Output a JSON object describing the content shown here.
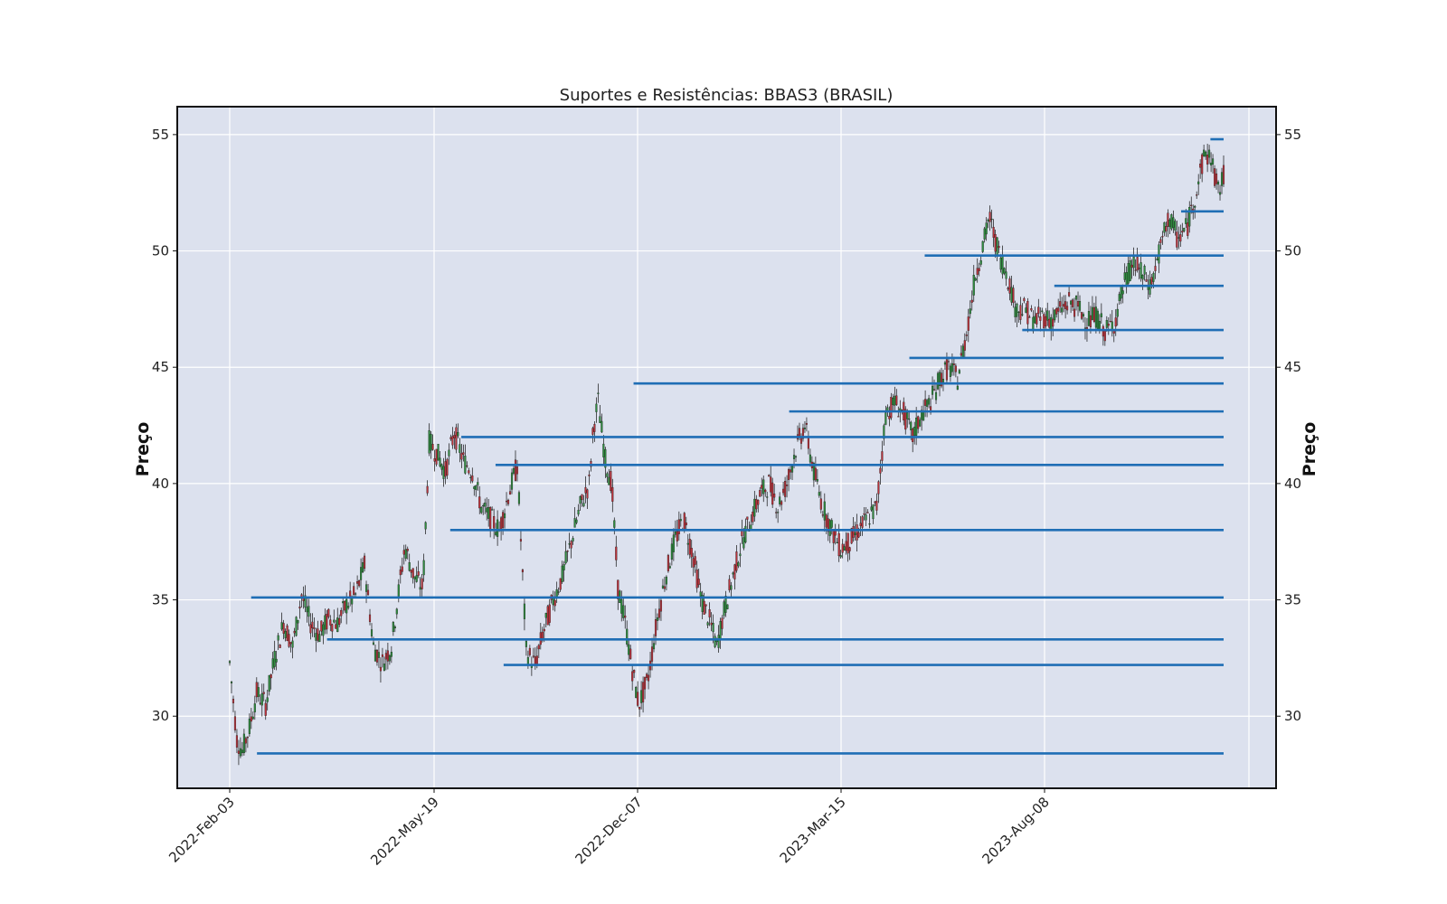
{
  "chart_data": {
    "type": "candlestick",
    "title": "Suportes e Resistências: BBAS3 (BRASIL)",
    "ylabel_left": "Preço",
    "ylabel_right": "Preço",
    "ylim": [
      26.9,
      56.2
    ],
    "y_ticks": [
      30,
      35,
      40,
      45,
      50,
      55
    ],
    "x_tick_labels": [
      "2022-Feb-03",
      "2022-May-19",
      "2022-Dec-07",
      "2023-Mar-15",
      "2023-Aug-08"
    ],
    "grid": true,
    "colors": {
      "plot_bg": "#dce1ee",
      "line": "#1f6eb5",
      "up": "#2e8b3e",
      "down": "#b8323b",
      "wick": "#111111"
    },
    "support_resistance_levels": [
      {
        "start": "2022-Feb-17",
        "level": 28.4
      },
      {
        "start": "2022-Feb-14",
        "level": 35.1
      },
      {
        "start": "2022-Mar-25",
        "level": 33.3
      },
      {
        "start": "2022-Jun-04",
        "level": 38.0
      },
      {
        "start": "2022-Jun-15",
        "level": 42.0
      },
      {
        "start": "2022-Jul-19",
        "level": 40.8
      },
      {
        "start": "2022-Jul-27",
        "level": 32.2
      },
      {
        "start": "2022-Dec-03",
        "level": 44.3
      },
      {
        "start": "2023-Feb-18",
        "level": 43.1
      },
      {
        "start": "2023-May-03",
        "level": 45.4
      },
      {
        "start": "2023-May-14",
        "level": 49.8
      },
      {
        "start": "2023-Jul-23",
        "level": 46.6
      },
      {
        "start": "2023-Aug-15",
        "level": 48.5
      },
      {
        "start": "2023-Nov-14",
        "level": 51.7
      },
      {
        "start": "2023-Dec-05",
        "level": 54.8
      }
    ],
    "price_path": [
      [
        0,
        32.3
      ],
      [
        8,
        29.0
      ],
      [
        14,
        28.5
      ],
      [
        22,
        29.5
      ],
      [
        30,
        31.0
      ],
      [
        40,
        30.5
      ],
      [
        50,
        32.5
      ],
      [
        60,
        34.0
      ],
      [
        70,
        33.0
      ],
      [
        80,
        35.2
      ],
      [
        90,
        34.0
      ],
      [
        100,
        33.5
      ],
      [
        110,
        34.2
      ],
      [
        120,
        34.0
      ],
      [
        130,
        34.8
      ],
      [
        140,
        35.2
      ],
      [
        150,
        36.5
      ],
      [
        160,
        33.0
      ],
      [
        170,
        32.3
      ],
      [
        180,
        33.0
      ],
      [
        185,
        34.5
      ],
      [
        195,
        37.3
      ],
      [
        205,
        36.0
      ],
      [
        215,
        35.5
      ],
      [
        222,
        41.8
      ],
      [
        232,
        41.2
      ],
      [
        240,
        40.5
      ],
      [
        250,
        42.2
      ],
      [
        260,
        41.0
      ],
      [
        270,
        40.5
      ],
      [
        280,
        39.0
      ],
      [
        290,
        38.5
      ],
      [
        300,
        38.0
      ],
      [
        310,
        39.5
      ],
      [
        320,
        40.8
      ],
      [
        330,
        32.8
      ],
      [
        340,
        32.2
      ],
      [
        348,
        33.5
      ],
      [
        360,
        35.0
      ],
      [
        370,
        36.0
      ],
      [
        380,
        37.5
      ],
      [
        390,
        39.0
      ],
      [
        400,
        40.0
      ],
      [
        405,
        42.5
      ],
      [
        410,
        43.5
      ],
      [
        418,
        41.0
      ],
      [
        425,
        40.0
      ],
      [
        432,
        35.5
      ],
      [
        440,
        34.0
      ],
      [
        448,
        32.0
      ],
      [
        455,
        30.5
      ],
      [
        465,
        31.5
      ],
      [
        475,
        34.0
      ],
      [
        485,
        36.0
      ],
      [
        495,
        37.5
      ],
      [
        505,
        38.5
      ],
      [
        515,
        37.0
      ],
      [
        525,
        35.0
      ],
      [
        535,
        34.0
      ],
      [
        542,
        33.0
      ],
      [
        550,
        34.5
      ],
      [
        560,
        36.0
      ],
      [
        570,
        37.5
      ],
      [
        580,
        38.5
      ],
      [
        590,
        39.5
      ],
      [
        600,
        40.0
      ],
      [
        610,
        39.0
      ],
      [
        620,
        40.0
      ],
      [
        630,
        41.5
      ],
      [
        640,
        42.5
      ],
      [
        650,
        40.5
      ],
      [
        660,
        39.0
      ],
      [
        670,
        38.0
      ],
      [
        680,
        37.2
      ],
      [
        690,
        37.5
      ],
      [
        700,
        38.0
      ],
      [
        710,
        38.5
      ],
      [
        720,
        39.0
      ],
      [
        730,
        43.0
      ],
      [
        740,
        43.5
      ],
      [
        750,
        43.0
      ],
      [
        760,
        42.0
      ],
      [
        770,
        43.0
      ],
      [
        780,
        43.5
      ],
      [
        790,
        44.5
      ],
      [
        800,
        45.0
      ],
      [
        810,
        44.5
      ],
      [
        820,
        46.5
      ],
      [
        830,
        49.0
      ],
      [
        840,
        50.5
      ],
      [
        845,
        51.5
      ],
      [
        855,
        50.0
      ],
      [
        865,
        49.0
      ],
      [
        875,
        47.5
      ],
      [
        885,
        47.5
      ],
      [
        895,
        47.0
      ],
      [
        905,
        47.2
      ],
      [
        915,
        47.0
      ],
      [
        925,
        47.5
      ],
      [
        935,
        47.8
      ],
      [
        945,
        47.5
      ],
      [
        955,
        47.0
      ],
      [
        965,
        47.2
      ],
      [
        975,
        46.5
      ],
      [
        985,
        47.0
      ],
      [
        995,
        48.5
      ],
      [
        1005,
        49.5
      ],
      [
        1015,
        49.0
      ],
      [
        1025,
        48.5
      ],
      [
        1035,
        50.0
      ],
      [
        1045,
        51.5
      ],
      [
        1055,
        50.5
      ],
      [
        1065,
        51.0
      ],
      [
        1075,
        52.5
      ],
      [
        1085,
        54.2
      ],
      [
        1092,
        54.0
      ],
      [
        1100,
        52.5
      ],
      [
        1106,
        53.2
      ]
    ]
  }
}
